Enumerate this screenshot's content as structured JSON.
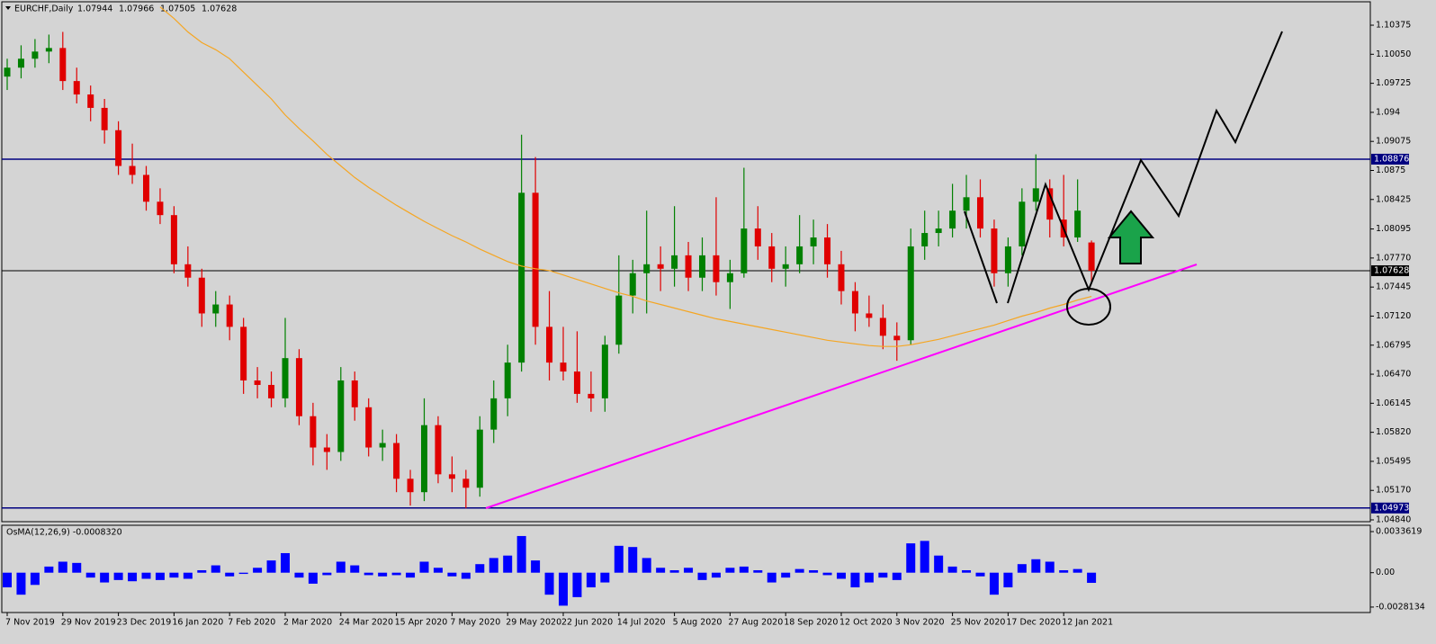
{
  "chart_data": {
    "type": "candlestick",
    "title": "EURCHF,Daily",
    "categories": [
      "7 Nov 2019",
      null,
      null,
      null,
      "29 Nov 2019",
      null,
      null,
      null,
      "23 Dec 2019",
      null,
      null,
      null,
      "16 Jan 2020",
      null,
      null,
      null,
      "7 Feb 2020",
      null,
      null,
      null,
      "2 Mar 2020",
      null,
      null,
      null,
      "24 Mar 2020",
      null,
      null,
      null,
      "15 Apr 2020",
      null,
      null,
      null,
      "7 May 2020",
      null,
      null,
      null,
      "29 May 2020",
      null,
      null,
      null,
      "22 Jun 2020",
      null,
      null,
      null,
      "14 Jul 2020",
      null,
      null,
      null,
      "5 Aug 2020",
      null,
      null,
      null,
      "27 Aug 2020",
      null,
      null,
      null,
      "18 Sep 2020",
      null,
      null,
      null,
      "12 Oct 2020",
      null,
      null,
      null,
      "3 Nov 2020",
      null,
      null,
      null,
      "25 Nov 2020",
      null,
      null,
      null,
      "17 Dec 2020",
      null,
      null,
      null,
      "12 Jan 2021",
      null,
      null
    ],
    "ohlc": [
      [
        1.098,
        1.1,
        1.0965,
        1.099
      ],
      [
        1.099,
        1.1015,
        1.0978,
        1.1
      ],
      [
        1.1,
        1.1022,
        1.099,
        1.1008
      ],
      [
        1.1008,
        1.1027,
        1.0995,
        1.1012
      ],
      [
        1.1012,
        1.103,
        1.0965,
        1.0975
      ],
      [
        1.0975,
        1.099,
        1.095,
        1.096
      ],
      [
        1.096,
        1.097,
        1.093,
        1.0945
      ],
      [
        1.0945,
        1.0955,
        1.0905,
        1.092
      ],
      [
        1.092,
        1.093,
        1.087,
        1.088
      ],
      [
        1.088,
        1.0905,
        1.086,
        1.087
      ],
      [
        1.087,
        1.088,
        1.083,
        1.084
      ],
      [
        1.084,
        1.0855,
        1.0815,
        1.0825
      ],
      [
        1.0825,
        1.0835,
        1.076,
        1.077
      ],
      [
        1.077,
        1.079,
        1.0745,
        1.0755
      ],
      [
        1.0755,
        1.0765,
        1.07,
        1.0715
      ],
      [
        1.0715,
        1.074,
        1.07,
        1.0725
      ],
      [
        1.0725,
        1.0735,
        1.0685,
        1.07
      ],
      [
        1.07,
        1.071,
        1.0625,
        1.064
      ],
      [
        1.064,
        1.0655,
        1.062,
        1.0635
      ],
      [
        1.0635,
        1.065,
        1.061,
        1.062
      ],
      [
        1.062,
        1.071,
        1.061,
        1.0665
      ],
      [
        1.0665,
        1.0675,
        1.059,
        1.06
      ],
      [
        1.06,
        1.0615,
        1.0545,
        1.0565
      ],
      [
        1.0565,
        1.058,
        1.054,
        1.056
      ],
      [
        1.056,
        1.0655,
        1.055,
        1.064
      ],
      [
        1.064,
        1.065,
        1.0595,
        1.061
      ],
      [
        1.061,
        1.062,
        1.0555,
        1.0565
      ],
      [
        1.0565,
        1.0585,
        1.055,
        1.057
      ],
      [
        1.057,
        1.058,
        1.0515,
        1.053
      ],
      [
        1.053,
        1.054,
        1.05,
        1.0515
      ],
      [
        1.0515,
        1.062,
        1.0505,
        1.059
      ],
      [
        1.059,
        1.06,
        1.0525,
        1.0535
      ],
      [
        1.0535,
        1.0555,
        1.0515,
        1.053
      ],
      [
        1.053,
        1.054,
        1.0497,
        1.052
      ],
      [
        1.052,
        1.06,
        1.051,
        1.0585
      ],
      [
        1.0585,
        1.064,
        1.057,
        1.062
      ],
      [
        1.062,
        1.068,
        1.06,
        1.066
      ],
      [
        1.066,
        1.0915,
        1.065,
        1.085
      ],
      [
        1.085,
        1.089,
        1.068,
        1.07
      ],
      [
        1.07,
        1.074,
        1.064,
        1.066
      ],
      [
        1.066,
        1.07,
        1.064,
        1.065
      ],
      [
        1.065,
        1.0695,
        1.0615,
        1.0625
      ],
      [
        1.0625,
        1.065,
        1.0605,
        1.062
      ],
      [
        1.062,
        1.069,
        1.0605,
        1.068
      ],
      [
        1.068,
        1.078,
        1.067,
        1.0735
      ],
      [
        1.0735,
        1.0775,
        1.0715,
        1.076
      ],
      [
        1.076,
        1.083,
        1.0715,
        1.077
      ],
      [
        1.077,
        1.079,
        1.074,
        1.0765
      ],
      [
        1.0765,
        1.0835,
        1.0745,
        1.078
      ],
      [
        1.078,
        1.0795,
        1.074,
        1.0755
      ],
      [
        1.0755,
        1.08,
        1.074,
        1.078
      ],
      [
        1.078,
        1.0845,
        1.0735,
        1.075
      ],
      [
        1.075,
        1.0775,
        1.072,
        1.076
      ],
      [
        1.076,
        1.0878,
        1.0755,
        1.081
      ],
      [
        1.081,
        1.0835,
        1.0775,
        1.079
      ],
      [
        1.079,
        1.0805,
        1.075,
        1.0765
      ],
      [
        1.0765,
        1.079,
        1.0745,
        1.077
      ],
      [
        1.077,
        1.0825,
        1.076,
        1.079
      ],
      [
        1.079,
        1.082,
        1.077,
        1.08
      ],
      [
        1.08,
        1.0815,
        1.0755,
        1.077
      ],
      [
        1.077,
        1.0785,
        1.0725,
        1.074
      ],
      [
        1.074,
        1.075,
        1.0695,
        1.0715
      ],
      [
        1.0715,
        1.0735,
        1.07,
        1.071
      ],
      [
        1.071,
        1.0725,
        1.0675,
        1.069
      ],
      [
        1.069,
        1.0705,
        1.0662,
        1.0685
      ],
      [
        1.0685,
        1.081,
        1.068,
        1.079
      ],
      [
        1.079,
        1.083,
        1.0775,
        1.0805
      ],
      [
        1.0805,
        1.083,
        1.079,
        1.081
      ],
      [
        1.081,
        1.086,
        1.08,
        1.083
      ],
      [
        1.083,
        1.087,
        1.081,
        1.0845
      ],
      [
        1.0845,
        1.0865,
        1.08,
        1.081
      ],
      [
        1.081,
        1.082,
        1.0745,
        1.076
      ],
      [
        1.076,
        1.08,
        1.0745,
        1.079
      ],
      [
        1.079,
        1.0855,
        1.078,
        1.084
      ],
      [
        1.084,
        1.0893,
        1.083,
        1.0855
      ],
      [
        1.0855,
        1.0865,
        1.08,
        1.082
      ],
      [
        1.082,
        1.087,
        1.079,
        1.08
      ],
      [
        1.08,
        1.0865,
        1.0795,
        1.083
      ],
      [
        1.07944,
        1.07966,
        1.07505,
        1.07628
      ]
    ],
    "up_color": "#008000",
    "down_color": "#e00000",
    "ma": {
      "color": "#f5a623",
      "values": [
        null,
        null,
        null,
        null,
        null,
        null,
        null,
        null,
        null,
        null,
        null,
        1.1058,
        1.1045,
        1.103,
        1.1018,
        1.101,
        1.1,
        1.0985,
        1.097,
        1.0955,
        1.0937,
        1.0922,
        1.0908,
        1.0893,
        1.088,
        1.0867,
        1.0856,
        1.0846,
        1.0836,
        1.0827,
        1.0818,
        1.081,
        1.0802,
        1.0795,
        1.0787,
        1.078,
        1.0773,
        1.0768,
        1.0765,
        1.0763,
        1.0758,
        1.0753,
        1.0748,
        1.0743,
        1.0738,
        1.0734,
        1.0729,
        1.0725,
        1.0721,
        1.0717,
        1.0713,
        1.0709,
        1.0706,
        1.0703,
        1.07,
        1.0697,
        1.0694,
        1.0691,
        1.0688,
        1.0685,
        1.0683,
        1.0681,
        1.0679,
        1.0678,
        1.0678,
        1.068,
        1.0683,
        1.0686,
        1.069,
        1.0694,
        1.0698,
        1.0702,
        1.0707,
        1.0712,
        1.0716,
        1.0721,
        1.0725,
        1.073,
        1.0734
      ]
    },
    "ylim": [
      1.0482,
      1.10657
    ],
    "yticks": [
      1.10375,
      {
        "value": 1.1005,
        "label": "1.10050"
      },
      1.09725,
      1.094,
      {
        "value": 1.09075,
        "label": "1.09075"
      },
      1.0875,
      1.08425,
      1.08095,
      {
        "value": 1.0777,
        "label": "1.07770"
      },
      1.07445,
      {
        "value": 1.0712,
        "label": "1.07120"
      },
      1.06795,
      {
        "value": 1.0647,
        "label": "1.06470"
      },
      1.06145,
      {
        "value": 1.0582,
        "label": "1.05820"
      },
      1.05495,
      {
        "value": 1.0517,
        "label": "1.05170"
      },
      {
        "value": 1.0484,
        "label": "1.04840"
      }
    ],
    "levels": [
      {
        "value": 1.08876,
        "color": "#000080"
      },
      {
        "value": 1.07628,
        "color": "#000000"
      },
      {
        "value": 1.04973,
        "color": "#000080"
      }
    ],
    "osma": {
      "title": "OsMA(12,26,9) -0.0008320",
      "color": "#0000ff",
      "values": [
        -0.0012,
        -0.0018,
        -0.001,
        0.0005,
        0.0009,
        0.0008,
        -0.0004,
        -0.0008,
        -0.0006,
        -0.0007,
        -0.0005,
        -0.0006,
        -0.0004,
        -0.0005,
        0.0002,
        0.0006,
        -0.0003,
        -0.0001,
        0.0004,
        0.001,
        0.0016,
        -0.0004,
        -0.0009,
        -0.0002,
        0.0009,
        0.0006,
        -0.0002,
        -0.0003,
        -0.0002,
        -0.0004,
        0.0009,
        0.0004,
        -0.0003,
        -0.0005,
        0.0007,
        0.0012,
        0.0014,
        0.003,
        0.001,
        -0.0018,
        -0.0027,
        -0.002,
        -0.0012,
        -0.0008,
        0.0022,
        0.0021,
        0.0012,
        0.0004,
        0.0002,
        0.0004,
        -0.0006,
        -0.0004,
        0.0004,
        0.0005,
        0.0002,
        -0.0008,
        -0.0004,
        0.0003,
        0.0002,
        -0.0002,
        -0.0005,
        -0.0012,
        -0.0008,
        -0.0004,
        -0.0006,
        0.0024,
        0.0026,
        0.0014,
        0.0005,
        0.0002,
        -0.0003,
        -0.0018,
        -0.0012,
        0.0007,
        0.0011,
        0.0009,
        0.0002,
        0.0003,
        -0.000832
      ],
      "ylim": [
        -0.00326,
        0.00388
      ],
      "yticks": [
        0.0033619,
        {
          "value": 0,
          "label": "0.00"
        },
        -0.0028134
      ]
    }
  }
}
